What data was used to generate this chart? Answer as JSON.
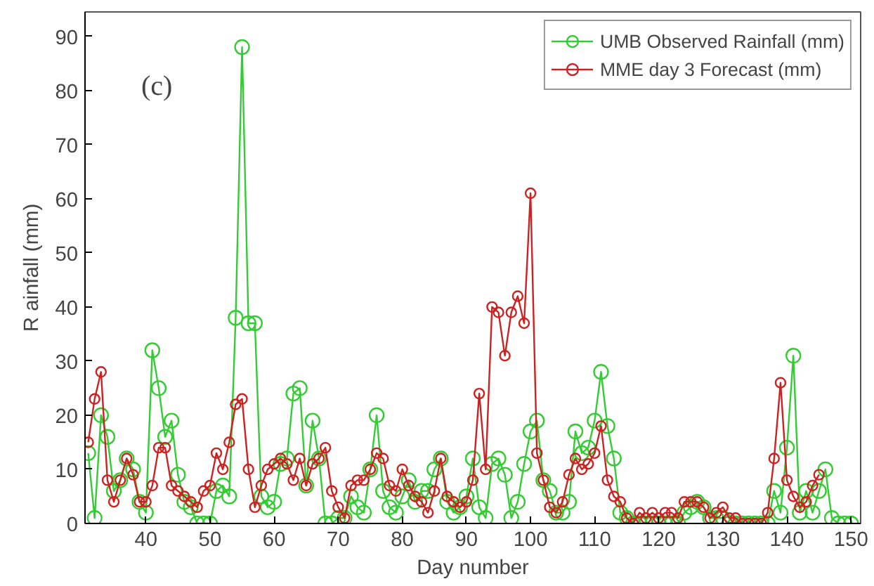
{
  "chart_data": {
    "type": "line",
    "xlabel": "Day number",
    "ylabel": "R ainfall (mm)",
    "annotations": [
      "(c)"
    ],
    "x": [
      31,
      32,
      33,
      34,
      35,
      36,
      37,
      38,
      39,
      40,
      41,
      42,
      43,
      44,
      45,
      46,
      47,
      48,
      49,
      50,
      51,
      52,
      53,
      54,
      55,
      56,
      57,
      58,
      59,
      60,
      61,
      62,
      63,
      64,
      65,
      66,
      67,
      68,
      69,
      70,
      71,
      72,
      73,
      74,
      75,
      76,
      77,
      78,
      79,
      80,
      81,
      82,
      83,
      84,
      85,
      86,
      87,
      88,
      89,
      90,
      91,
      92,
      93,
      94,
      95,
      96,
      97,
      98,
      99,
      100,
      101,
      102,
      103,
      104,
      105,
      106,
      107,
      108,
      109,
      110,
      111,
      112,
      113,
      114,
      115,
      116,
      117,
      118,
      119,
      120,
      121,
      122,
      123,
      124,
      125,
      126,
      127,
      128,
      129,
      130,
      131,
      132,
      133,
      134,
      135,
      136,
      137,
      138,
      139,
      140,
      141,
      142,
      143,
      144,
      145,
      146,
      147,
      148,
      149,
      150
    ],
    "series": [
      {
        "name": "UMB Observed Rainfall (mm)",
        "color": "#33cc33",
        "values": [
          13,
          1,
          20,
          16,
          6,
          8,
          12,
          10,
          4,
          2,
          32,
          25,
          16,
          19,
          9,
          4,
          3,
          0,
          0,
          0,
          6,
          7,
          5,
          38,
          88,
          37,
          37,
          5,
          3,
          4,
          11,
          12,
          24,
          25,
          7,
          19,
          12,
          0,
          0,
          1,
          1,
          5,
          3,
          2,
          10,
          20,
          6,
          3,
          2,
          5,
          8,
          4,
          6,
          6,
          10,
          12,
          4,
          2,
          3,
          5,
          12,
          3,
          1,
          11,
          12,
          9,
          1,
          4,
          11,
          17,
          19,
          8,
          6,
          2,
          2,
          4,
          17,
          13,
          14,
          19,
          28,
          18,
          12,
          2,
          1,
          0,
          0,
          0,
          0,
          0,
          0,
          0,
          0,
          2,
          3,
          4,
          3,
          1,
          1,
          1,
          0,
          0,
          0,
          0,
          0,
          0,
          0,
          6,
          2,
          14,
          31,
          2,
          6,
          2,
          6,
          10,
          1,
          0,
          0,
          0
        ]
      },
      {
        "name": "MME day 3 Forecast (mm)",
        "color": "#cc2222",
        "values": [
          15,
          23,
          28,
          8,
          4,
          8,
          12,
          9,
          4,
          4,
          7,
          14,
          14,
          7,
          6,
          5,
          4,
          3,
          6,
          7,
          13,
          10,
          15,
          22,
          23,
          10,
          3,
          7,
          10,
          11,
          12,
          11,
          8,
          12,
          7,
          11,
          12,
          14,
          6,
          3,
          1,
          7,
          8,
          8,
          10,
          13,
          12,
          7,
          6,
          10,
          7,
          5,
          4,
          2,
          6,
          12,
          5,
          4,
          3,
          4,
          8,
          24,
          10,
          40,
          39,
          31,
          39,
          42,
          37,
          61,
          13,
          8,
          3,
          2,
          4,
          9,
          12,
          10,
          11,
          13,
          18,
          8,
          5,
          4,
          1,
          0,
          2,
          1,
          2,
          1,
          2,
          2,
          1,
          4,
          4,
          4,
          3,
          1,
          2,
          3,
          1,
          1,
          0,
          0,
          0,
          0,
          2,
          12,
          26,
          8,
          5,
          3,
          4,
          7,
          9,
          null,
          null,
          null,
          null,
          null
        ]
      }
    ],
    "xlim": [
      30.5,
      151.5
    ],
    "ylim": [
      0,
      94.5
    ],
    "xticks": [
      40,
      50,
      60,
      70,
      80,
      90,
      100,
      110,
      120,
      130,
      140,
      150
    ],
    "yticks": [
      0,
      10,
      20,
      30,
      40,
      50,
      60,
      70,
      80,
      90
    ],
    "grid": false,
    "legend": "top right",
    "marker": "circle",
    "line_style": "solid"
  }
}
